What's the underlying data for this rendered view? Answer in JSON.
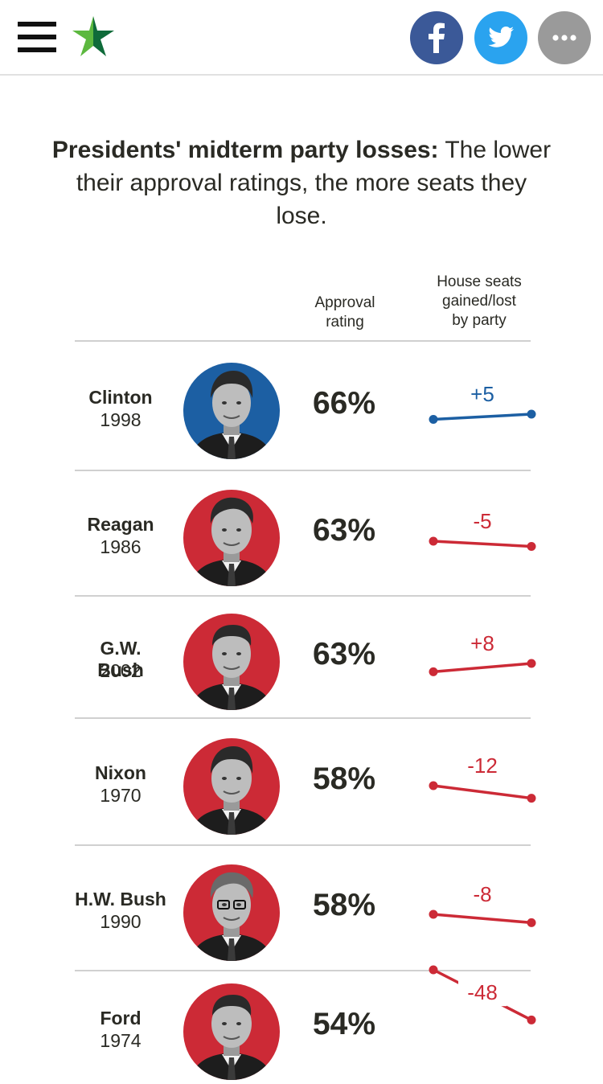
{
  "header": {
    "menu_icon": "hamburger-menu-icon",
    "logo_icon": "star-logo-icon",
    "share_buttons": [
      {
        "icon": "facebook-icon",
        "color": "#3b5998"
      },
      {
        "icon": "twitter-icon",
        "color": "#2aa3ef"
      },
      {
        "icon": "more-dots-icon",
        "color": "#9a9a9a"
      }
    ]
  },
  "headline": {
    "lead": "Presidents' midterm party losses:",
    "rest": "The lower their approval ratings, the more seats they lose."
  },
  "columns": {
    "approval_line1": "Approval",
    "approval_line2": "rating",
    "seats_line1": "House seats",
    "seats_line2": "gained/lost",
    "seats_line3": "by party"
  },
  "colors": {
    "democrat": "#1c5fa3",
    "republican": "#cc2a36",
    "text": "#2a2a24",
    "divider": "#d0d0d0"
  },
  "rows": [
    {
      "name": "Clinton",
      "year": "1998",
      "approval": "66%",
      "seats_label": "+5",
      "seats": 5,
      "party": "democrat"
    },
    {
      "name": "Reagan",
      "year": "1986",
      "approval": "63%",
      "seats_label": "-5",
      "seats": -5,
      "party": "republican"
    },
    {
      "name": "G.W. Bush",
      "year": "2002",
      "approval": "63%",
      "seats_label": "+8",
      "seats": 8,
      "party": "republican"
    },
    {
      "name": "Nixon",
      "year": "1970",
      "approval": "58%",
      "seats_label": "-12",
      "seats": -12,
      "party": "republican"
    },
    {
      "name": "H.W. Bush",
      "year": "1990",
      "approval": "58%",
      "seats_label": "-8",
      "seats": -8,
      "party": "republican"
    },
    {
      "name": "Ford",
      "year": "1974",
      "approval": "54%",
      "seats_label": "-48",
      "seats": -48,
      "party": "republican"
    }
  ]
}
